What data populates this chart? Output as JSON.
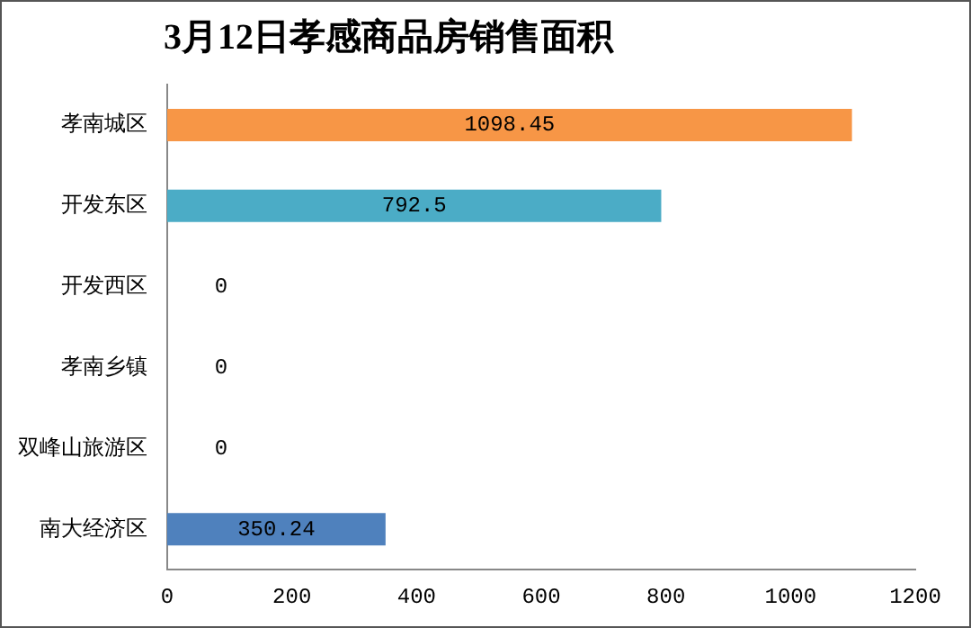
{
  "chart_data": {
    "type": "bar",
    "orientation": "horizontal",
    "title": "3月12日孝感商品房销售面积",
    "categories": [
      "孝南城区",
      "开发东区",
      "开发西区",
      "孝南乡镇",
      "双峰山旅游区",
      "南大经济区"
    ],
    "values": [
      1098.45,
      792.5,
      0,
      0,
      0,
      350.24
    ],
    "colors": [
      "#f79646",
      "#4bacc6",
      "#9bbb59",
      "#8064a2",
      "#c0504d",
      "#4f81bd"
    ],
    "xlim": [
      0,
      1200
    ],
    "xticks": [
      0,
      200,
      400,
      600,
      800,
      1000,
      1200
    ],
    "data_labels": true,
    "grid": false,
    "legend": false
  }
}
